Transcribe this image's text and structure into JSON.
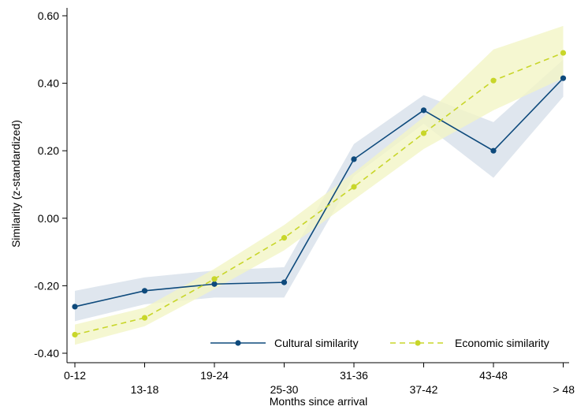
{
  "chart_data": {
    "type": "line",
    "xlabel": "Months since arrival",
    "ylabel": "Similarity (z-standardized)",
    "categories": [
      "0-12",
      "13-18",
      "19-24",
      "25-30",
      "31-36",
      "37-42",
      "43-48",
      "> 48"
    ],
    "ylim": [
      -0.4,
      0.6
    ],
    "yticks": [
      -0.4,
      -0.2,
      0.0,
      0.2,
      0.4,
      0.6
    ],
    "ytick_labels": [
      "-0.40",
      "-0.20",
      "0.00",
      "0.20",
      "0.40",
      "0.60"
    ],
    "grid": false,
    "legend_position": "bottom-right",
    "series": [
      {
        "name": "Cultural similarity",
        "values": [
          -0.262,
          -0.215,
          -0.195,
          -0.19,
          0.175,
          0.32,
          0.2,
          0.415
        ],
        "ci_lower": [
          -0.305,
          -0.255,
          -0.235,
          -0.235,
          0.125,
          0.28,
          0.12,
          0.36
        ],
        "ci_upper": [
          -0.215,
          -0.175,
          -0.155,
          -0.145,
          0.22,
          0.365,
          0.285,
          0.47
        ],
        "color": "#0e4a7c",
        "band_color": "#dfe6ee",
        "line_style": "solid"
      },
      {
        "name": "Economic similarity",
        "values": [
          -0.345,
          -0.295,
          -0.18,
          -0.058,
          0.093,
          0.252,
          0.408,
          0.49
        ],
        "ci_lower": [
          -0.375,
          -0.32,
          -0.21,
          -0.095,
          0.055,
          0.205,
          0.32,
          0.415
        ],
        "ci_upper": [
          -0.315,
          -0.265,
          -0.15,
          -0.02,
          0.135,
          0.3,
          0.5,
          0.57
        ],
        "color": "#c8d62a",
        "band_color": "#f2f5c6",
        "line_style": "dashed"
      }
    ]
  }
}
